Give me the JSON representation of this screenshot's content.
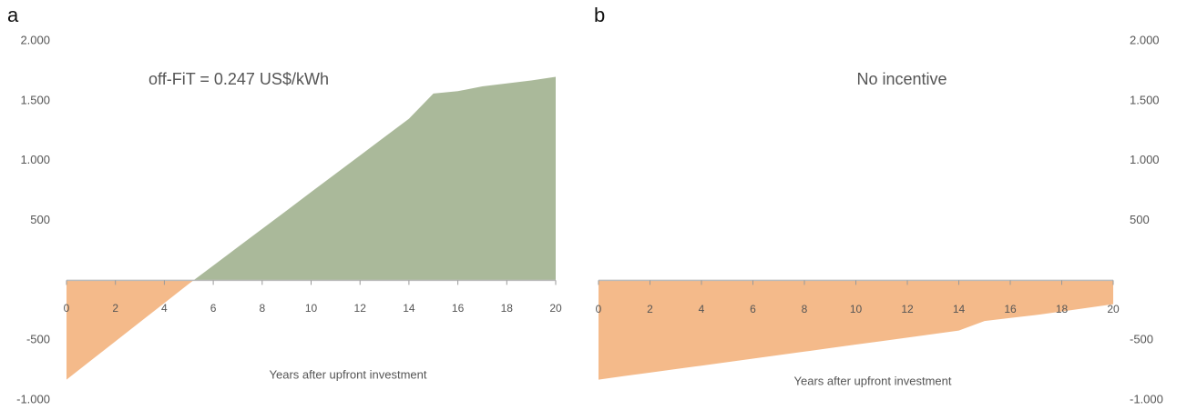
{
  "chart_data": [
    {
      "type": "area",
      "title": "a",
      "annotation": "off-FiT = 0.247 US$/kWh",
      "x_label": "Years after upfront investment",
      "y_axis_side": "left",
      "x": [
        0,
        1,
        2,
        3,
        4,
        5,
        6,
        7,
        8,
        9,
        10,
        11,
        12,
        13,
        14,
        15,
        16,
        17,
        18,
        19,
        20
      ],
      "series": [
        {
          "values": [
            -830,
            -670,
            -510,
            -350,
            -190,
            -30,
            123,
            277,
            430,
            583,
            737,
            890,
            1043,
            1197,
            1350,
            1560,
            1580,
            1620,
            1645,
            1670,
            1700
          ],
          "color": "#aab99a",
          "negative_color": "#f4ba8a"
        }
      ],
      "xlim": [
        0,
        20
      ],
      "xticks": [
        0,
        2,
        4,
        6,
        8,
        10,
        12,
        14,
        16,
        18,
        20
      ],
      "ylim": [
        -1000,
        2000
      ],
      "yticks": [
        {
          "value": 2000,
          "label": "2.000"
        },
        {
          "value": 1500,
          "label": "1.500"
        },
        {
          "value": 1000,
          "label": "1.000"
        },
        500,
        -500,
        {
          "value": -1000,
          "label": "-1.000"
        }
      ]
    },
    {
      "type": "area",
      "title": "b",
      "annotation": "No incentive",
      "x_label": "Years after upfront investment",
      "y_axis_side": "right",
      "x": [
        0,
        1,
        2,
        3,
        4,
        5,
        6,
        7,
        8,
        9,
        10,
        11,
        12,
        13,
        14,
        15,
        16,
        17,
        18,
        19,
        20
      ],
      "series": [
        {
          "values": [
            -830,
            -800,
            -771,
            -742,
            -713,
            -684,
            -654,
            -625,
            -596,
            -566,
            -537,
            -508,
            -479,
            -449,
            -420,
            -340,
            -315,
            -290,
            -260,
            -230,
            -200
          ],
          "color": "#aab99a",
          "negative_color": "#f4ba8a"
        }
      ],
      "xlim": [
        0,
        20
      ],
      "xticks": [
        0,
        2,
        4,
        6,
        8,
        10,
        12,
        14,
        16,
        18,
        20
      ],
      "ylim": [
        -1000,
        2000
      ],
      "yticks": [
        {
          "value": 2000,
          "label": "2.000"
        },
        {
          "value": 1500,
          "label": "1.500"
        },
        {
          "value": 1000,
          "label": "1.000"
        },
        500,
        -500,
        {
          "value": -1000,
          "label": "-1.000"
        }
      ]
    }
  ]
}
